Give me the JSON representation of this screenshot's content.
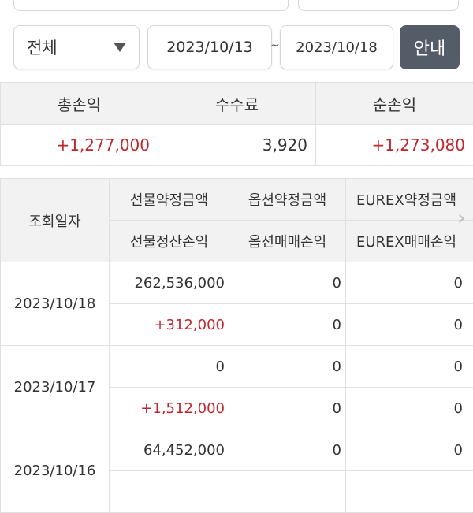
{
  "filters": {
    "type_selected": "전체",
    "start_date": "2023/10/13",
    "separator": "~",
    "end_date": "2023/10/18",
    "guide_button": "안내"
  },
  "summary": {
    "headers": [
      "총손익",
      "수수료",
      "순손익"
    ],
    "values": [
      "+1,277,000",
      "3,920",
      "+1,273,080"
    ]
  },
  "grid": {
    "date_header": "조회일자",
    "headers_top": [
      "선물약정금액",
      "옵션약정금액",
      "EUREX약정금액"
    ],
    "headers_bottom": [
      "선물정산손익",
      "옵션매매손익",
      "EUREX매매손익"
    ],
    "rows": [
      {
        "date": "2023/10/18",
        "top": [
          "262,536,000",
          "0",
          "0"
        ],
        "bottom": [
          "+312,000",
          "0",
          "0"
        ]
      },
      {
        "date": "2023/10/17",
        "top": [
          "0",
          "0",
          "0"
        ],
        "bottom": [
          "+1,512,000",
          "0",
          "0"
        ]
      },
      {
        "date": "2023/10/16",
        "top": [
          "64,452,000",
          "0",
          "0"
        ],
        "bottom": [
          "",
          "",
          ""
        ]
      }
    ]
  },
  "colors": {
    "positive": "#c0272d",
    "button": "#545c68",
    "header_bg": "#f2f2f2"
  }
}
